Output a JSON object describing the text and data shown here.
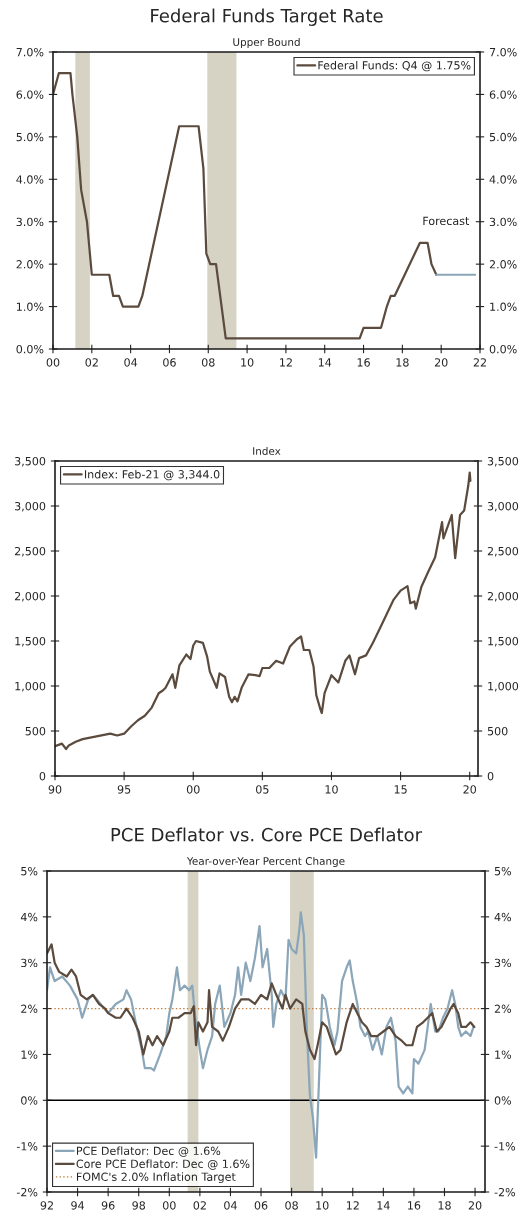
{
  "chart_data": [
    {
      "type": "line",
      "title": "Federal Funds Target Rate",
      "subtitle": "Upper Bound",
      "xlim": [
        2000,
        2022
      ],
      "xticks": [
        {
          "value": 2000,
          "label": "00"
        },
        {
          "value": 2002,
          "label": "02"
        },
        {
          "value": 2004,
          "label": "04"
        },
        {
          "value": 2006,
          "label": "06"
        },
        {
          "value": 2008,
          "label": "08"
        },
        {
          "value": 2010,
          "label": "10"
        },
        {
          "value": 2012,
          "label": "12"
        },
        {
          "value": 2014,
          "label": "14"
        },
        {
          "value": 2016,
          "label": "16"
        },
        {
          "value": 2018,
          "label": "18"
        },
        {
          "value": 2020,
          "label": "20"
        },
        {
          "value": 2022,
          "label": "22"
        }
      ],
      "ylim": [
        0,
        7
      ],
      "yticks": [
        {
          "value": 0,
          "label": "0.0%"
        },
        {
          "value": 1,
          "label": "1.0%"
        },
        {
          "value": 2,
          "label": "2.0%"
        },
        {
          "value": 3,
          "label": "3.0%"
        },
        {
          "value": 4,
          "label": "4.0%"
        },
        {
          "value": 5,
          "label": "5.0%"
        },
        {
          "value": 6,
          "label": "6.0%"
        },
        {
          "value": 7,
          "label": "7.0%"
        }
      ],
      "y2lim": [
        0,
        7
      ],
      "y2ticks": [
        {
          "value": 0,
          "label": "0.0%"
        },
        {
          "value": 1,
          "label": "1.0%"
        },
        {
          "value": 2,
          "label": "2.0%"
        },
        {
          "value": 3,
          "label": "3.0%"
        },
        {
          "value": 4,
          "label": "4.0%"
        },
        {
          "value": 5,
          "label": "5.0%"
        },
        {
          "value": 6,
          "label": "6.0%"
        },
        {
          "value": 7,
          "label": "7.0%"
        }
      ],
      "bands": [
        {
          "axis": "x",
          "from": 2001.15,
          "to": 2001.9,
          "color": "#d6d2c4"
        },
        {
          "axis": "x",
          "from": 2007.95,
          "to": 2009.45,
          "color": "#d6d2c4"
        }
      ],
      "series": [
        {
          "name": "Federal Funds: Q4 @ 1.75%",
          "color": "#5b4b3e",
          "x": [
            2000.0,
            2000.3,
            2000.9,
            2001.0,
            2001.25,
            2001.45,
            2001.75,
            2002.0,
            2002.9,
            2003.1,
            2003.4,
            2003.6,
            2004.4,
            2004.6,
            2006.5,
            2007.5,
            2007.75,
            2007.9,
            2008.1,
            2008.4,
            2008.9,
            2015.8,
            2016.0,
            2016.9,
            2017.2,
            2017.4,
            2017.6,
            2018.9,
            2019.3,
            2019.5,
            2019.75
          ],
          "values": [
            6.0,
            6.5,
            6.5,
            6.0,
            5.0,
            3.75,
            3.0,
            1.75,
            1.75,
            1.25,
            1.25,
            1.0,
            1.0,
            1.25,
            5.25,
            5.25,
            4.25,
            2.25,
            2.0,
            2.0,
            0.25,
            0.25,
            0.5,
            0.5,
            1.0,
            1.25,
            1.25,
            2.5,
            2.5,
            2.0,
            1.75
          ]
        },
        {
          "color": "#8aa6b8",
          "x": [
            2019.75,
            2021.75
          ],
          "values": [
            1.75,
            1.75
          ]
        }
      ],
      "annotations": [
        "Forecast"
      ],
      "legend": "top right",
      "grid": false
    },
    {
      "type": "line",
      "subtitle": "Index",
      "xlim": [
        1990,
        2020.6
      ],
      "xticks": [
        {
          "value": 1990,
          "label": "90"
        },
        {
          "value": 1995,
          "label": "95"
        },
        {
          "value": 2000,
          "label": "00"
        },
        {
          "value": 2005,
          "label": "05"
        },
        {
          "value": 2010,
          "label": "10"
        },
        {
          "value": 2015,
          "label": "15"
        },
        {
          "value": 2020,
          "label": "20"
        }
      ],
      "ylim": [
        0,
        3500
      ],
      "yticks": [
        0,
        500,
        {
          "value": 1000,
          "label": "1,000"
        },
        {
          "value": 1500,
          "label": "1,500"
        },
        {
          "value": 2000,
          "label": "2,000"
        },
        {
          "value": 2500,
          "label": "2,500"
        },
        {
          "value": 3000,
          "label": "3,000"
        },
        {
          "value": 3500,
          "label": "3,500"
        }
      ],
      "y2lim": [
        0,
        3500
      ],
      "y2ticks": [
        0,
        500,
        {
          "value": 1000,
          "label": "1,000"
        },
        {
          "value": 1500,
          "label": "1,500"
        },
        {
          "value": 2000,
          "label": "2,000"
        },
        {
          "value": 2500,
          "label": "2,500"
        },
        {
          "value": 3000,
          "label": "3,000"
        },
        {
          "value": 3500,
          "label": "3,500"
        }
      ],
      "series": [
        {
          "name": "Index: Feb-21 @ 3,344.0",
          "color": "#5b4b3e",
          "x": [
            1990.0,
            1990.5,
            1990.8,
            1991.0,
            1991.5,
            1992.0,
            1993.0,
            1994.0,
            1994.5,
            1995.0,
            1995.5,
            1996.0,
            1996.5,
            1997.0,
            1997.5,
            1997.8,
            1998.0,
            1998.5,
            1998.7,
            1999.0,
            1999.5,
            1999.8,
            2000.0,
            2000.2,
            2000.7,
            2001.0,
            2001.2,
            2001.7,
            2001.9,
            2002.3,
            2002.6,
            2002.8,
            2003.0,
            2003.2,
            2003.5,
            2004.0,
            2004.5,
            2004.8,
            2005.0,
            2005.5,
            2006.0,
            2006.5,
            2007.0,
            2007.5,
            2007.8,
            2008.0,
            2008.4,
            2008.7,
            2008.9,
            2009.2,
            2009.3,
            2009.5,
            2010.0,
            2010.5,
            2011.0,
            2011.3,
            2011.7,
            2012.0,
            2012.5,
            2013.0,
            2013.5,
            2014.0,
            2014.5,
            2015.0,
            2015.5,
            2015.7,
            2016.0,
            2016.1,
            2016.5,
            2017.0,
            2017.5,
            2018.0,
            2018.1,
            2018.7,
            2018.95,
            2019.3,
            2019.6,
            2019.9,
            2020.0,
            2020.05
          ],
          "values": [
            330,
            360,
            300,
            340,
            380,
            410,
            440,
            470,
            450,
            470,
            550,
            620,
            670,
            760,
            920,
            950,
            980,
            1130,
            980,
            1230,
            1350,
            1300,
            1450,
            1500,
            1480,
            1330,
            1160,
            980,
            1140,
            1100,
            880,
            820,
            880,
            830,
            980,
            1130,
            1120,
            1110,
            1200,
            1200,
            1280,
            1250,
            1440,
            1520,
            1550,
            1400,
            1400,
            1220,
            900,
            740,
            700,
            920,
            1120,
            1040,
            1280,
            1340,
            1130,
            1310,
            1340,
            1480,
            1640,
            1800,
            1960,
            2060,
            2110,
            1920,
            1940,
            1860,
            2100,
            2270,
            2430,
            2820,
            2640,
            2900,
            2420,
            2900,
            2950,
            3230,
            3370,
            3280
          ]
        }
      ],
      "legend": "top left",
      "grid": false
    },
    {
      "type": "line",
      "title": "PCE Deflator vs. Core PCE Deflator",
      "subtitle": "Year-over-Year Percent Change",
      "xlim": [
        1992,
        2020.65
      ],
      "xticks": [
        {
          "value": 1992,
          "label": "92"
        },
        {
          "value": 1994,
          "label": "94"
        },
        {
          "value": 1996,
          "label": "96"
        },
        {
          "value": 1998,
          "label": "98"
        },
        {
          "value": 2000,
          "label": "00"
        },
        {
          "value": 2002,
          "label": "02"
        },
        {
          "value": 2004,
          "label": "04"
        },
        {
          "value": 2006,
          "label": "06"
        },
        {
          "value": 2008,
          "label": "08"
        },
        {
          "value": 2010,
          "label": "10"
        },
        {
          "value": 2012,
          "label": "12"
        },
        {
          "value": 2014,
          "label": "14"
        },
        {
          "value": 2016,
          "label": "16"
        },
        {
          "value": 2018,
          "label": "18"
        },
        {
          "value": 2020,
          "label": "20"
        }
      ],
      "ylim": [
        -2,
        5
      ],
      "yticks": [
        {
          "value": -2,
          "label": "-2%"
        },
        {
          "value": -1,
          "label": "-1%"
        },
        {
          "value": 0,
          "label": "0%"
        },
        {
          "value": 1,
          "label": "1%"
        },
        {
          "value": 2,
          "label": "2%"
        },
        {
          "value": 3,
          "label": "3%"
        },
        {
          "value": 4,
          "label": "4%"
        },
        {
          "value": 5,
          "label": "5%"
        }
      ],
      "y2lim": [
        -2,
        5
      ],
      "y2ticks": [
        {
          "value": -2,
          "label": "-2%"
        },
        {
          "value": -1,
          "label": "-1%"
        },
        {
          "value": 0,
          "label": "0%"
        },
        {
          "value": 1,
          "label": "1%"
        },
        {
          "value": 2,
          "label": "2%"
        },
        {
          "value": 3,
          "label": "3%"
        },
        {
          "value": 4,
          "label": "4%"
        },
        {
          "value": 5,
          "label": "5%"
        }
      ],
      "bands": [
        {
          "axis": "x",
          "from": 2001.2,
          "to": 2001.9,
          "color": "#d6d2c4"
        },
        {
          "axis": "x",
          "from": 2007.9,
          "to": 2009.45,
          "color": "#d6d2c4"
        }
      ],
      "series": [
        {
          "name": "PCE Deflator: Dec @ 1.6%",
          "color": "#8aa6b8",
          "x": [
            1992.0,
            1992.2,
            1992.5,
            1993.0,
            1993.5,
            1994.0,
            1994.3,
            1994.7,
            1995.0,
            1995.5,
            1996.0,
            1996.5,
            1997.0,
            1997.2,
            1997.5,
            1997.8,
            1998.2,
            1998.4,
            1998.8,
            1999.0,
            1999.4,
            1999.8,
            2000.0,
            2000.2,
            2000.5,
            2000.7,
            2001.0,
            2001.3,
            2001.5,
            2001.7,
            2002.0,
            2002.2,
            2002.5,
            2002.8,
            2003.0,
            2003.3,
            2003.6,
            2004.0,
            2004.3,
            2004.5,
            2004.7,
            2005.0,
            2005.3,
            2005.6,
            2005.9,
            2006.1,
            2006.4,
            2006.7,
            2006.8,
            2007.0,
            2007.3,
            2007.6,
            2007.8,
            2008.0,
            2008.3,
            2008.5,
            2008.6,
            2008.8,
            2009.0,
            2009.2,
            2009.4,
            2009.6,
            2009.8,
            2010.0,
            2010.2,
            2010.5,
            2010.8,
            2011.0,
            2011.3,
            2011.6,
            2011.8,
            2012.0,
            2012.3,
            2012.5,
            2012.8,
            2013.0,
            2013.3,
            2013.6,
            2013.9,
            2014.2,
            2014.5,
            2014.8,
            2015.0,
            2015.3,
            2015.6,
            2015.9,
            2016.0,
            2016.3,
            2016.7,
            2016.9,
            2017.1,
            2017.4,
            2017.6,
            2017.9,
            2018.2,
            2018.5,
            2018.7,
            2018.9,
            2019.1,
            2019.4,
            2019.7,
            2019.9
          ],
          "values": [
            2.4,
            2.9,
            2.6,
            2.7,
            2.5,
            2.2,
            1.8,
            2.2,
            2.3,
            2.1,
            1.9,
            2.1,
            2.2,
            2.4,
            2.2,
            1.7,
            1.1,
            0.7,
            0.7,
            0.65,
            1.0,
            1.4,
            1.9,
            2.2,
            2.9,
            2.4,
            2.5,
            2.4,
            2.5,
            1.8,
            1.1,
            0.7,
            1.1,
            1.4,
            2.1,
            2.5,
            1.6,
            1.9,
            2.3,
            2.9,
            2.3,
            3.0,
            2.6,
            3.1,
            3.8,
            2.9,
            3.3,
            2.3,
            1.6,
            2.1,
            2.4,
            2.2,
            3.5,
            3.3,
            3.2,
            3.7,
            4.1,
            3.6,
            1.5,
            0.1,
            -0.4,
            -1.25,
            0.5,
            2.3,
            2.2,
            1.6,
            1.2,
            1.5,
            2.6,
            2.9,
            3.05,
            2.6,
            2.1,
            1.6,
            1.4,
            1.5,
            1.1,
            1.4,
            1.0,
            1.6,
            1.8,
            1.3,
            0.3,
            0.15,
            0.3,
            0.15,
            0.9,
            0.8,
            1.1,
            1.6,
            2.1,
            1.5,
            1.5,
            1.8,
            2.0,
            2.4,
            2.1,
            1.6,
            1.4,
            1.5,
            1.4,
            1.6
          ]
        },
        {
          "name": "Core PCE Deflator: Dec @ 1.6%",
          "color": "#5b4b3e",
          "x": [
            1992.0,
            1992.3,
            1992.5,
            1992.8,
            1993.3,
            1993.6,
            1993.9,
            1994.2,
            1994.6,
            1995.0,
            1995.4,
            1995.8,
            1996.0,
            1996.5,
            1996.8,
            1997.2,
            1997.6,
            1998.0,
            1998.3,
            1998.6,
            1998.9,
            1999.2,
            1999.6,
            2000.0,
            2000.2,
            2000.6,
            2001.0,
            2001.4,
            2001.6,
            2001.75,
            2001.9,
            2002.2,
            2002.5,
            2002.6,
            2002.8,
            2003.2,
            2003.5,
            2003.9,
            2004.3,
            2004.7,
            2005.2,
            2005.6,
            2006.0,
            2006.4,
            2006.7,
            2007.0,
            2007.4,
            2007.6,
            2007.9,
            2008.3,
            2008.7,
            2008.9,
            2009.2,
            2009.5,
            2009.7,
            2010.0,
            2010.3,
            2010.6,
            2010.9,
            2011.2,
            2011.6,
            2012.0,
            2012.3,
            2012.6,
            2012.9,
            2013.2,
            2013.6,
            2014.0,
            2014.4,
            2014.8,
            2015.2,
            2015.5,
            2015.9,
            2016.2,
            2016.6,
            2016.9,
            2017.2,
            2017.5,
            2017.8,
            2018.1,
            2018.4,
            2018.6,
            2018.9,
            2019.1,
            2019.4,
            2019.7,
            2019.95
          ],
          "values": [
            3.2,
            3.4,
            3.0,
            2.8,
            2.7,
            2.85,
            2.7,
            2.3,
            2.2,
            2.3,
            2.1,
            2.0,
            1.9,
            1.8,
            1.8,
            2.0,
            1.8,
            1.5,
            1.0,
            1.4,
            1.2,
            1.4,
            1.2,
            1.5,
            1.8,
            1.8,
            1.9,
            1.9,
            2.05,
            1.2,
            1.7,
            1.5,
            1.7,
            2.4,
            1.6,
            1.5,
            1.3,
            1.6,
            2.0,
            2.2,
            2.2,
            2.1,
            2.3,
            2.2,
            2.55,
            2.3,
            2.0,
            2.3,
            2.0,
            2.2,
            2.1,
            1.5,
            1.1,
            0.9,
            1.2,
            1.7,
            1.6,
            1.3,
            1.0,
            1.1,
            1.7,
            2.1,
            1.9,
            1.7,
            1.6,
            1.4,
            1.4,
            1.5,
            1.6,
            1.4,
            1.3,
            1.2,
            1.2,
            1.6,
            1.7,
            1.8,
            1.9,
            1.5,
            1.6,
            1.8,
            2.0,
            2.1,
            1.9,
            1.6,
            1.6,
            1.7,
            1.6
          ]
        }
      ],
      "ref_lines": [
        {
          "axis": "y",
          "value": 0,
          "color": "#000000",
          "line_style": "solid"
        },
        {
          "axis": "y",
          "value": 2,
          "label": "FOMC's 2.0% Inflation Target",
          "color": "#c07a3a",
          "line_style": "dotted"
        }
      ],
      "legend": "bottom left",
      "grid": false
    }
  ]
}
